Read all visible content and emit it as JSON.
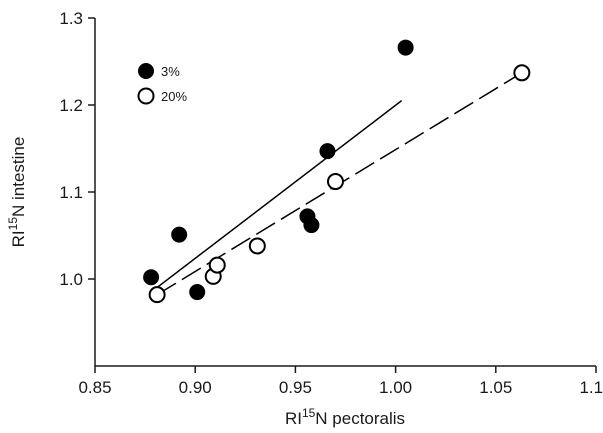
{
  "chart_data": {
    "type": "scatter",
    "xlabel_prefix": "RI",
    "xlabel_sup": "15",
    "xlabel_suffix": "N pectoralis",
    "ylabel_prefix": "RI",
    "ylabel_sup": "15",
    "ylabel_suffix": "N intestine",
    "xlim": [
      0.85,
      1.1
    ],
    "ylim": [
      0.9,
      1.3
    ],
    "xticks": [
      "0.85",
      "0.90",
      "0.95",
      "1.00",
      "1.05",
      "1.10"
    ],
    "yticks": [
      "1.0",
      "1.1",
      "1.2",
      "1.3"
    ],
    "grid": false,
    "legend_position": "top-left",
    "series": [
      {
        "name": "3%",
        "marker": "filled-circle",
        "color": "#000000",
        "fit_line": "solid",
        "points": [
          {
            "x": 0.878,
            "y": 1.002
          },
          {
            "x": 0.892,
            "y": 1.051
          },
          {
            "x": 0.901,
            "y": 0.985
          },
          {
            "x": 0.956,
            "y": 1.072
          },
          {
            "x": 0.958,
            "y": 1.062
          },
          {
            "x": 0.966,
            "y": 1.147
          },
          {
            "x": 1.005,
            "y": 1.266
          }
        ],
        "fit": {
          "x1": 0.878,
          "y1": 0.985,
          "x2": 1.003,
          "y2": 1.205
        }
      },
      {
        "name": "20%",
        "marker": "open-circle",
        "color": "#000000",
        "fit_line": "dashed",
        "points": [
          {
            "x": 0.881,
            "y": 0.982
          },
          {
            "x": 0.909,
            "y": 1.003
          },
          {
            "x": 0.911,
            "y": 1.016
          },
          {
            "x": 0.931,
            "y": 1.038
          },
          {
            "x": 0.97,
            "y": 1.112
          },
          {
            "x": 1.063,
            "y": 1.237
          }
        ],
        "fit": {
          "x1": 0.881,
          "y1": 0.982,
          "x2": 1.063,
          "y2": 1.237
        }
      }
    ]
  }
}
